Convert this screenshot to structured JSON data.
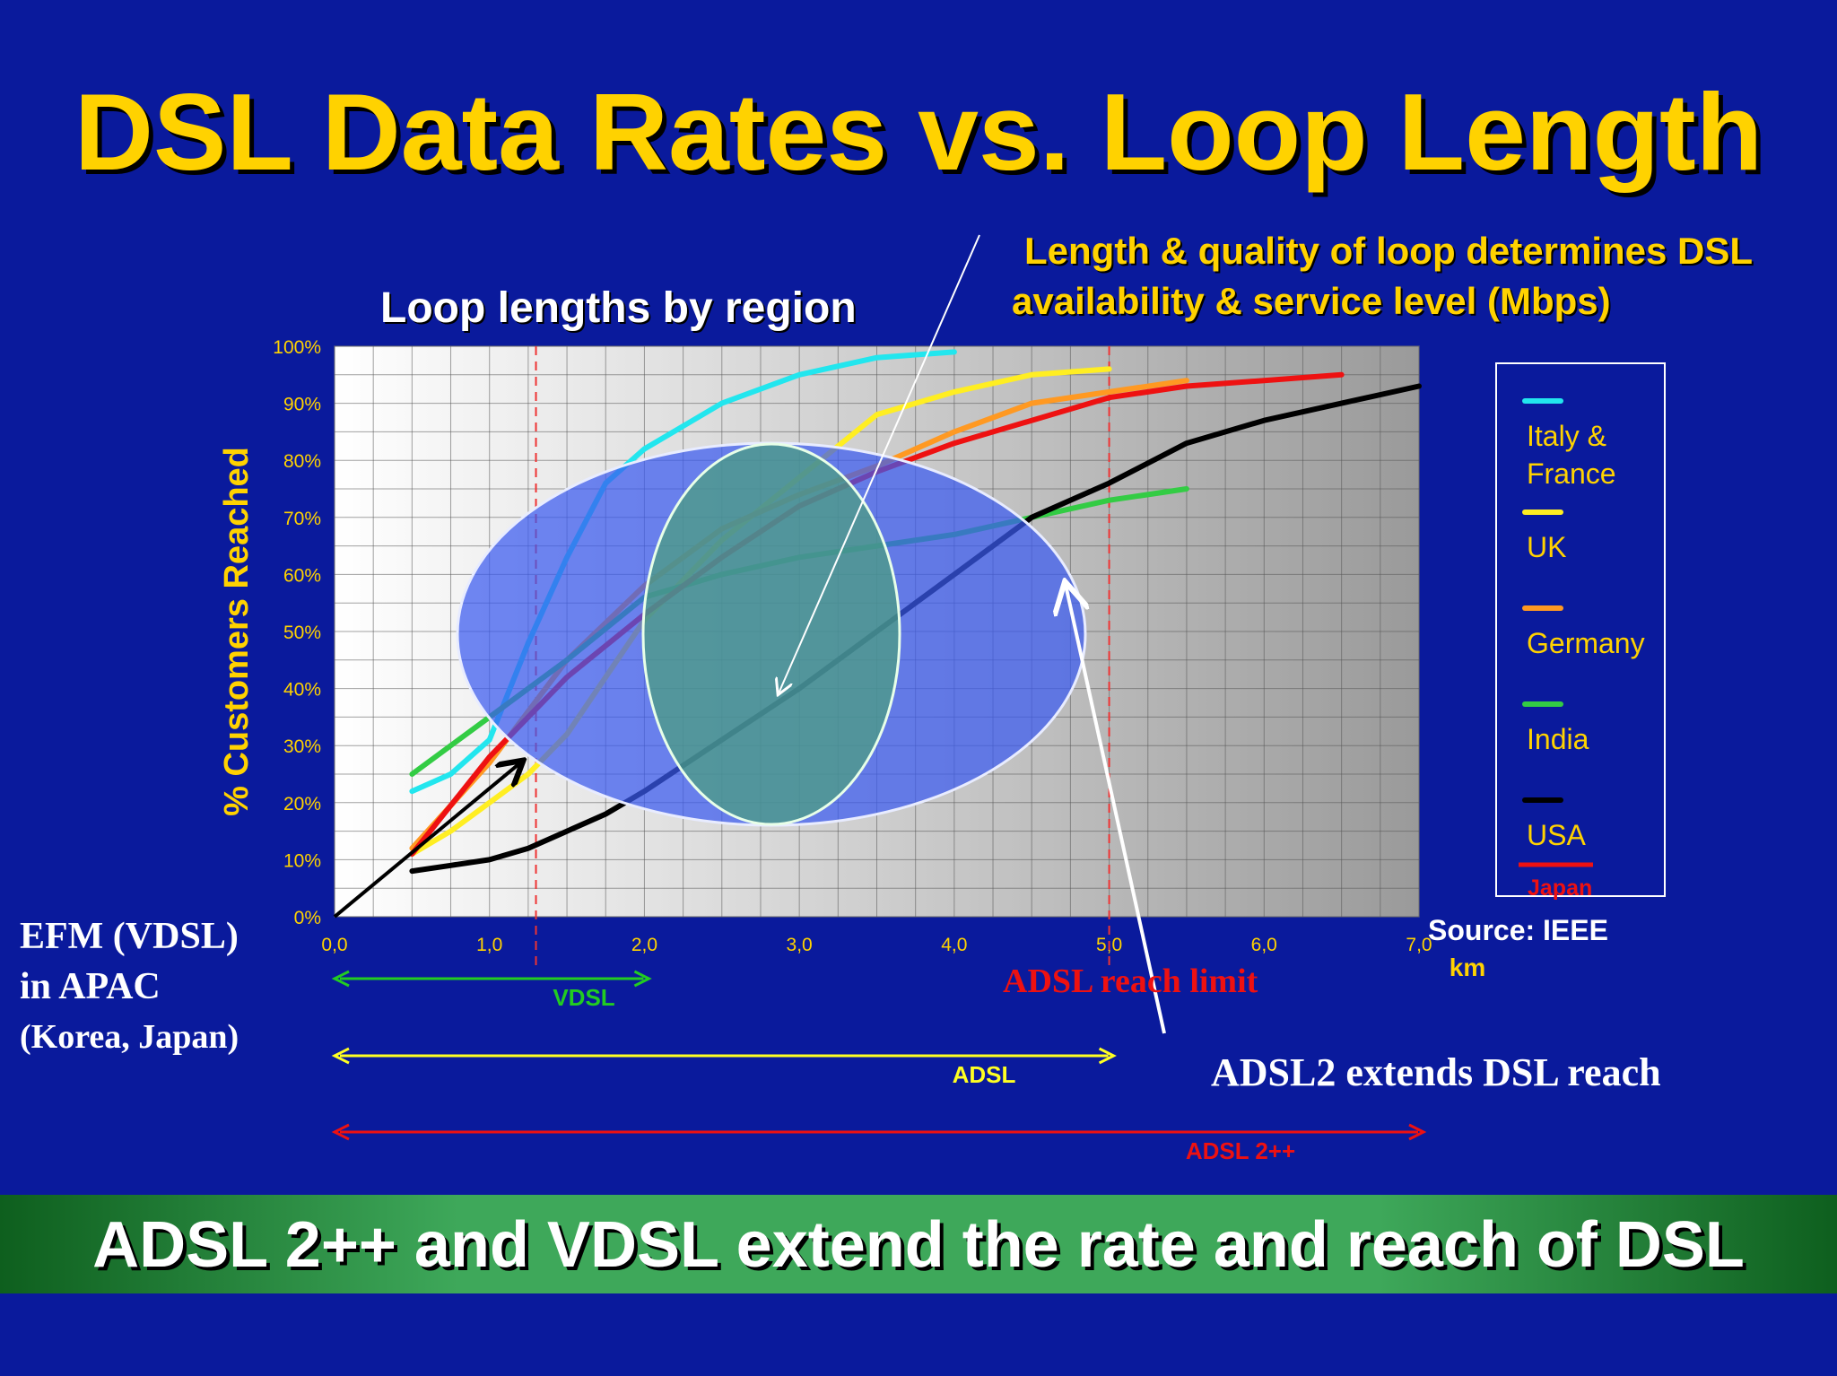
{
  "title": "DSL Data Rates vs. Loop Length",
  "callout": {
    "line1": "Length & quality of loop determines DSL",
    "line2": "availability & service level (Mbps)"
  },
  "efm": {
    "line1": "EFM (VDSL)",
    "line2": "in APAC",
    "line3": "(Korea, Japan)"
  },
  "adsl2_note": "ADSL2 extends DSL reach",
  "banner": "ADSL 2++ and VDSL extend the rate and reach of DSL",
  "colors": {
    "background": "#0a1a9c",
    "title": "#ffd200",
    "vdsl": "#22cc22",
    "adsl": "#ffff22",
    "adsl2pp": "#ee1111"
  },
  "chart_data": {
    "type": "line",
    "title": "Loop lengths by region",
    "ylabel": "% Customers Reached",
    "xlabel": "km",
    "xlim": [
      0,
      7
    ],
    "ylim": [
      0,
      100
    ],
    "x_ticks": [
      "0,0",
      "1,0",
      "2,0",
      "3,0",
      "4,0",
      "5,0",
      "6,0",
      "7,0"
    ],
    "y_ticks": [
      "0%",
      "10%",
      "20%",
      "30%",
      "40%",
      "50%",
      "60%",
      "70%",
      "80%",
      "90%",
      "100%"
    ],
    "source": "Source: IEEE",
    "reach_limit_label": "ADSL reach limit",
    "series": [
      {
        "name": "Italy & France",
        "color": "#22e6ee",
        "points": [
          [
            0.5,
            22
          ],
          [
            0.75,
            25
          ],
          [
            1.0,
            31
          ],
          [
            1.25,
            48
          ],
          [
            1.5,
            63
          ],
          [
            1.75,
            76
          ],
          [
            2.0,
            82
          ],
          [
            2.5,
            90
          ],
          [
            3.0,
            95
          ],
          [
            3.5,
            98
          ],
          [
            4.0,
            99
          ]
        ]
      },
      {
        "name": "UK",
        "color": "#ffee22",
        "points": [
          [
            0.5,
            11
          ],
          [
            0.75,
            15
          ],
          [
            1.0,
            20
          ],
          [
            1.25,
            25
          ],
          [
            1.5,
            32
          ],
          [
            2.0,
            52
          ],
          [
            2.5,
            66
          ],
          [
            3.0,
            77
          ],
          [
            3.5,
            88
          ],
          [
            4.0,
            92
          ],
          [
            4.5,
            95
          ],
          [
            5.0,
            96
          ]
        ]
      },
      {
        "name": "Germany",
        "color": "#ff9922",
        "points": [
          [
            0.5,
            12
          ],
          [
            1.0,
            27
          ],
          [
            1.5,
            45
          ],
          [
            2.0,
            58
          ],
          [
            2.5,
            68
          ],
          [
            3.0,
            74
          ],
          [
            3.5,
            79
          ],
          [
            4.0,
            85
          ],
          [
            4.5,
            90
          ],
          [
            5.0,
            92
          ],
          [
            5.5,
            94
          ]
        ]
      },
      {
        "name": "India",
        "color": "#33cc44",
        "points": [
          [
            0.5,
            25
          ],
          [
            1.0,
            35
          ],
          [
            1.5,
            45
          ],
          [
            2.0,
            56
          ],
          [
            2.5,
            60
          ],
          [
            3.0,
            63
          ],
          [
            3.5,
            65
          ],
          [
            4.0,
            67
          ],
          [
            4.5,
            70
          ],
          [
            5.0,
            73
          ],
          [
            5.5,
            75
          ]
        ]
      },
      {
        "name": "USA",
        "color": "#000000",
        "points": [
          [
            0.5,
            8
          ],
          [
            0.75,
            9
          ],
          [
            1.0,
            10
          ],
          [
            1.25,
            12
          ],
          [
            1.5,
            15
          ],
          [
            1.75,
            18
          ],
          [
            2.0,
            22
          ],
          [
            2.5,
            31
          ],
          [
            3.0,
            40
          ],
          [
            3.5,
            50
          ],
          [
            4.0,
            60
          ],
          [
            4.5,
            70
          ],
          [
            5.0,
            76
          ],
          [
            5.5,
            83
          ],
          [
            6.0,
            87
          ],
          [
            6.5,
            90
          ],
          [
            7.0,
            93
          ]
        ]
      },
      {
        "name": "Japan",
        "color": "#ee1111",
        "points": [
          [
            0.5,
            11
          ],
          [
            1.0,
            28
          ],
          [
            1.5,
            42
          ],
          [
            2.0,
            53
          ],
          [
            2.5,
            63
          ],
          [
            3.0,
            72
          ],
          [
            3.5,
            78
          ],
          [
            4.0,
            83
          ],
          [
            4.5,
            87
          ],
          [
            5.0,
            91
          ],
          [
            5.5,
            93
          ],
          [
            6.0,
            94
          ],
          [
            6.5,
            95
          ]
        ]
      }
    ],
    "ranges": [
      {
        "name": "VDSL",
        "from": 0,
        "to": 2.0,
        "color": "#22cc22"
      },
      {
        "name": "ADSL",
        "from": 0,
        "to": 5.0,
        "color": "#ffff22"
      },
      {
        "name": "ADSL 2++",
        "from": 0,
        "to": 7.0,
        "color": "#ee1111"
      }
    ],
    "reference_lines_km": [
      1.3,
      5.0
    ],
    "black_arrow": {
      "from": [
        0,
        0
      ],
      "to": [
        1.2,
        27
      ]
    }
  }
}
